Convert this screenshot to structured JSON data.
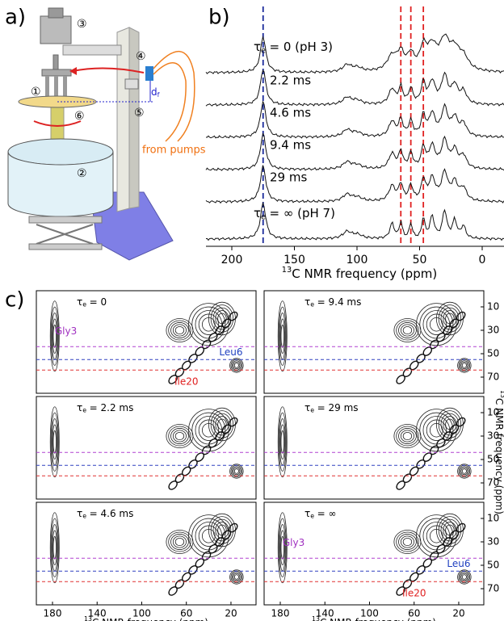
{
  "symbols": {
    "tau": "τ",
    "tau_sub": "e",
    "sup13": "13"
  },
  "panel_a": {
    "label": "a)",
    "callouts": [
      "①",
      "②",
      "③",
      "④",
      "⑤",
      "⑥"
    ],
    "d_main": "d",
    "d_sub": "f",
    "pumps": "from pumps"
  },
  "panel_b": {
    "label": "b)",
    "traces": [
      {
        "tau_label": "= 0 (pH 3)"
      },
      {
        "label": "2.2 ms"
      },
      {
        "label": "4.6 ms"
      },
      {
        "label": "9.4 ms"
      },
      {
        "label": "29 ms"
      },
      {
        "tau_label": "= ∞ (pH 7)"
      }
    ],
    "xticks": [
      200,
      150,
      100,
      50,
      0
    ],
    "xtitle": "C NMR frequency (ppm)"
  },
  "panel_c": {
    "label": "c)",
    "plots": [
      {
        "tau_label": "= 0",
        "annotations": [
          "Gly3",
          "Leu6",
          "Ile20"
        ]
      },
      {
        "tau_label": "= 2.2 ms"
      },
      {
        "tau_label": "= 4.6 ms"
      },
      {
        "tau_label": "= 9.4 ms"
      },
      {
        "tau_label": "= 29 ms"
      },
      {
        "tau_label": "= ∞",
        "annotations": [
          "Gly3",
          "Leu6",
          "Ile20"
        ]
      }
    ],
    "xticks": [
      180,
      140,
      100,
      60,
      20
    ],
    "yticks": [
      10,
      30,
      50,
      70
    ],
    "xtitle": "C NMR frequency (ppm)",
    "ytitle": "C NMR frequency (ppm)"
  }
}
